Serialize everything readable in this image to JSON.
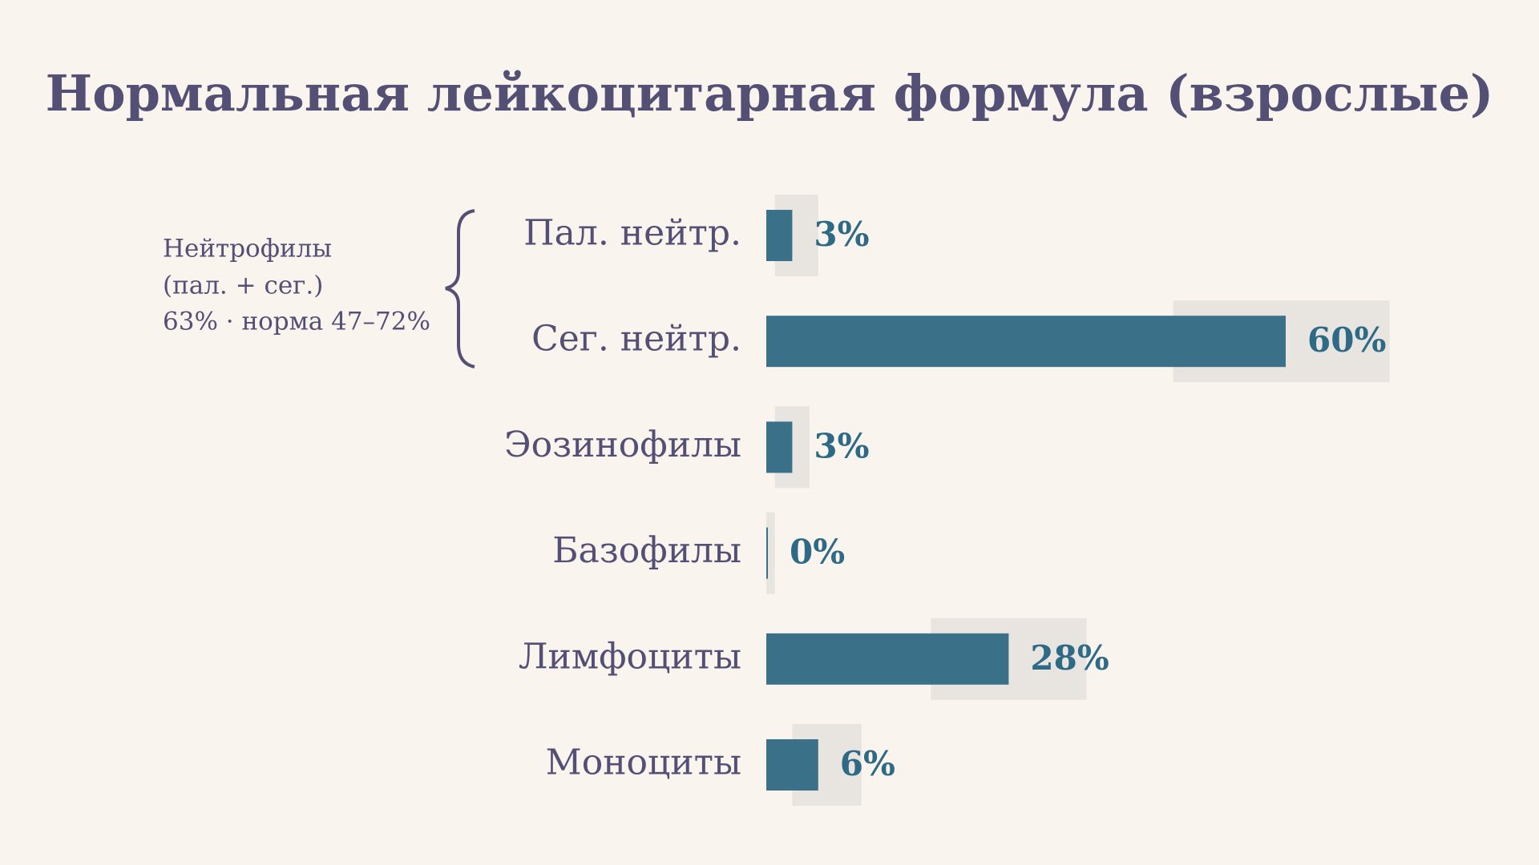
{
  "chart_data": {
    "type": "bar",
    "title": "Нормальная лейкоцитарная формула (взрослые)",
    "categories": [
      "Пал. нейтр.",
      "Сег. нейтр.",
      "Эозинофилы",
      "Базофилы",
      "Лимфоциты",
      "Моноциты"
    ],
    "values": [
      3,
      60,
      3,
      0,
      28,
      6
    ],
    "value_labels": [
      "3%",
      "60%",
      "3%",
      "0%",
      "28%",
      "6%"
    ],
    "ranges": [
      [
        1,
        6
      ],
      [
        47,
        72
      ],
      [
        1,
        5
      ],
      [
        0,
        1
      ],
      [
        19,
        37
      ],
      [
        3,
        11
      ]
    ],
    "color": "#3a7189",
    "range_color": "#e8e4e0",
    "xlim": [
      0,
      72
    ],
    "annotation": [
      "Нейтрофилы",
      "(пал. + сег.)",
      "63% · норма 47–72%"
    ]
  }
}
